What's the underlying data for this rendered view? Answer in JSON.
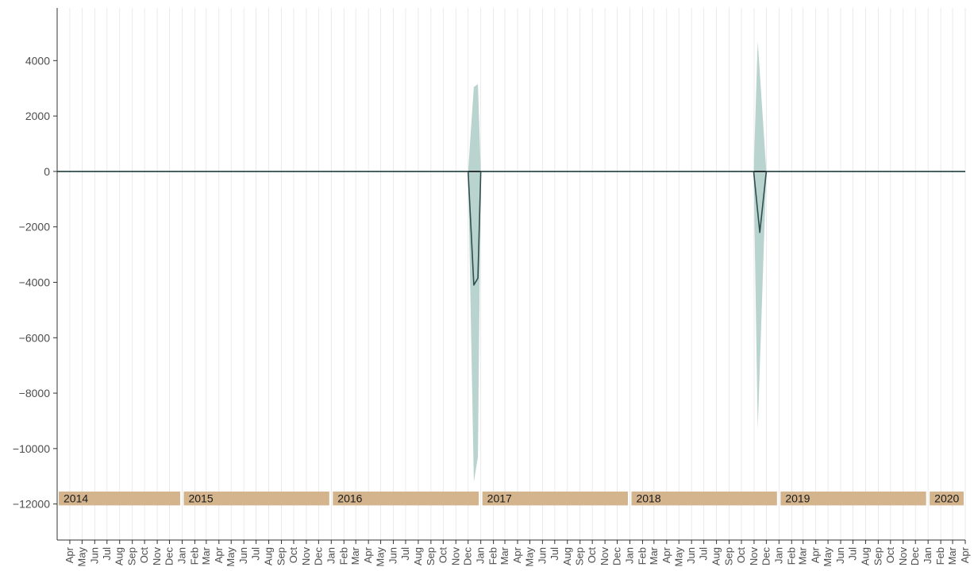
{
  "chart_data": {
    "type": "area",
    "title": "",
    "xlabel": "",
    "ylabel": "",
    "x_range": [
      "2014-03",
      "2020-04"
    ],
    "ylim": [
      -13300,
      5900
    ],
    "y_ticks": [
      4000,
      2000,
      0,
      -2000,
      -4000,
      -6000,
      -8000,
      -10000,
      -12000
    ],
    "y_tick_labels": [
      "4000",
      "2000",
      "0",
      "−2000",
      "−4000",
      "−6000",
      "−8000",
      "−10000",
      "−12000"
    ],
    "month_ticks": [
      "Apr",
      "May",
      "Jun",
      "Jul",
      "Aug",
      "Sep",
      "Oct",
      "Nov",
      "Dec",
      "Jan",
      "Feb",
      "Mar",
      "Apr",
      "May",
      "Jun",
      "Jul",
      "Aug",
      "Sep",
      "Oct",
      "Nov",
      "Dec",
      "Jan",
      "Feb",
      "Mar",
      "Apr",
      "May",
      "Jun",
      "Jul",
      "Aug",
      "Sep",
      "Oct",
      "Nov",
      "Dec",
      "Jan",
      "Feb",
      "Mar",
      "Apr",
      "May",
      "Jun",
      "Jul",
      "Aug",
      "Sep",
      "Oct",
      "Nov",
      "Dec",
      "Jan",
      "Feb",
      "Mar",
      "Apr",
      "May",
      "Jun",
      "Jul",
      "Aug",
      "Sep",
      "Oct",
      "Nov",
      "Dec",
      "Jan",
      "Feb",
      "Mar",
      "Apr",
      "May",
      "Jun",
      "Jul",
      "Aug",
      "Sep",
      "Oct",
      "Nov",
      "Dec",
      "Jan",
      "Feb",
      "Mar",
      "Apr"
    ],
    "year_bands": [
      {
        "label": "2014",
        "start": "2014-03-01",
        "end": "2014-12-31"
      },
      {
        "label": "2015",
        "start": "2015-01-01",
        "end": "2015-12-31"
      },
      {
        "label": "2016",
        "start": "2016-01-01",
        "end": "2016-12-31"
      },
      {
        "label": "2017",
        "start": "2017-01-01",
        "end": "2017-12-31"
      },
      {
        "label": "2018",
        "start": "2018-01-01",
        "end": "2018-12-31"
      },
      {
        "label": "2019",
        "start": "2019-01-01",
        "end": "2019-12-31"
      },
      {
        "label": "2020",
        "start": "2020-01-01",
        "end": "2020-04-01"
      }
    ],
    "series": [
      {
        "points": [
          {
            "x": "2014-03-01",
            "y": 0
          },
          {
            "x": "2016-12-01",
            "y": 0
          },
          {
            "x": "2016-12-15",
            "y": -4100
          },
          {
            "x": "2016-12-25",
            "y": -3850
          },
          {
            "x": "2017-01-01",
            "y": 0
          },
          {
            "x": "2018-10-31",
            "y": 0
          },
          {
            "x": "2018-11-15",
            "y": -2200
          },
          {
            "x": "2018-12-01",
            "y": 0
          },
          {
            "x": "2020-04-01",
            "y": 0
          }
        ]
      },
      {
        "band": true,
        "points": [
          {
            "x": "2014-03-01",
            "lower": 0,
            "upper": 0
          },
          {
            "x": "2016-12-01",
            "lower": 0,
            "upper": 0
          },
          {
            "x": "2016-12-15",
            "lower": -11200,
            "upper": 3050
          },
          {
            "x": "2016-12-25",
            "lower": -10300,
            "upper": 3150
          },
          {
            "x": "2017-01-01",
            "lower": 0,
            "upper": 0
          },
          {
            "x": "2018-10-31",
            "lower": 0,
            "upper": 0
          },
          {
            "x": "2018-11-10",
            "lower": -9300,
            "upper": 4700
          },
          {
            "x": "2018-12-01",
            "lower": 0,
            "upper": 0
          },
          {
            "x": "2020-04-01",
            "lower": 0,
            "upper": 0
          }
        ]
      }
    ],
    "grid": {
      "vertical_minor": true,
      "horizontal": false
    },
    "colors": {
      "line": "#2f4f4f",
      "zero_line": "#000000",
      "band": "#b9d3cf",
      "year_band": "#d4b48c",
      "grid": "#e5e5e5",
      "axis": "#333333"
    }
  }
}
